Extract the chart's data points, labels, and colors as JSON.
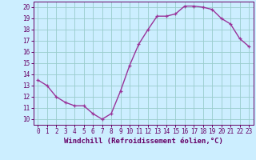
{
  "x": [
    0,
    1,
    2,
    3,
    4,
    5,
    6,
    7,
    8,
    9,
    10,
    11,
    12,
    13,
    14,
    15,
    16,
    17,
    18,
    19,
    20,
    21,
    22,
    23
  ],
  "y": [
    13.5,
    13.0,
    12.0,
    11.5,
    11.2,
    11.2,
    10.5,
    10.0,
    10.5,
    12.5,
    14.8,
    16.7,
    18.0,
    19.2,
    19.2,
    19.4,
    20.1,
    20.1,
    20.0,
    19.8,
    19.0,
    18.5,
    17.2,
    16.5
  ],
  "line_color": "#993399",
  "marker": "+",
  "bg_color": "#cceeff",
  "grid_color": "#99cccc",
  "xlabel": "Windchill (Refroidissement éolien,°C)",
  "xlim": [
    -0.5,
    23.5
  ],
  "ylim": [
    9.5,
    20.5
  ],
  "xticks": [
    0,
    1,
    2,
    3,
    4,
    5,
    6,
    7,
    8,
    9,
    10,
    11,
    12,
    13,
    14,
    15,
    16,
    17,
    18,
    19,
    20,
    21,
    22,
    23
  ],
  "yticks": [
    10,
    11,
    12,
    13,
    14,
    15,
    16,
    17,
    18,
    19,
    20
  ],
  "tick_color": "#660066",
  "label_color": "#660066",
  "font_size_xlabel": 6.5,
  "font_size_ticks": 5.5,
  "line_width": 1.0,
  "marker_size": 3.5,
  "marker_edge_width": 0.9
}
